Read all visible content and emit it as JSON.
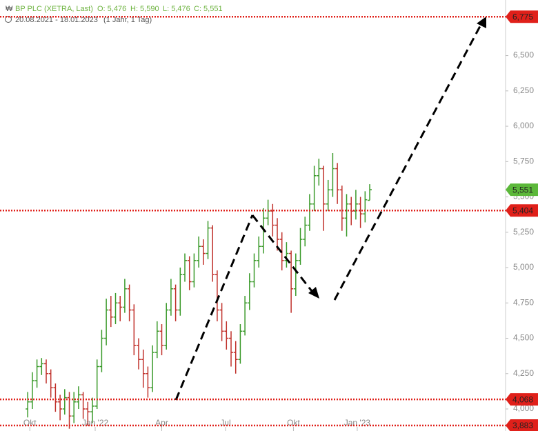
{
  "chart_data": {
    "type": "ohlc",
    "title": "BP PLC (XETRA, Last)",
    "quote": [
      "O: 5,476",
      "H: 5,590",
      "L: 5,476",
      "C: 5,551"
    ],
    "period": "20.08.2021 - 18.01.2023",
    "interval": "(1 Jahr, 1 Tag)",
    "up_color": "#3a9a2a",
    "down_color": "#c0302a",
    "open": [
      4.0,
      4.05,
      4.2,
      4.3,
      4.32,
      4.25,
      4.15,
      4.05,
      4.0,
      4.08,
      3.95,
      4.05,
      4.1,
      4.0,
      3.98,
      4.02,
      4.3,
      4.5,
      4.7,
      4.65,
      4.75,
      4.72,
      4.85,
      4.7,
      4.45,
      4.35,
      4.25,
      4.15,
      4.4,
      4.55,
      4.45,
      4.7,
      4.85,
      4.7,
      4.95,
      5.05,
      4.9,
      5.05,
      5.15,
      5.1,
      5.28,
      4.95,
      4.7,
      4.55,
      4.5,
      4.4,
      4.35,
      4.55,
      4.75,
      4.9,
      5.05,
      5.15,
      5.35,
      5.4,
      5.3,
      5.2,
      5.05,
      5.1,
      4.85,
      5.05,
      5.2,
      5.3,
      5.45,
      5.65,
      5.7,
      5.45,
      5.55,
      5.7,
      5.55,
      5.35,
      5.45,
      5.4,
      5.45,
      5.38,
      5.476
    ],
    "high": [
      4.12,
      4.26,
      4.35,
      4.36,
      4.35,
      4.28,
      4.18,
      4.1,
      4.14,
      4.12,
      4.12,
      4.16,
      4.12,
      4.05,
      4.08,
      4.35,
      4.56,
      4.78,
      4.8,
      4.82,
      4.8,
      4.92,
      4.88,
      4.74,
      4.5,
      4.42,
      4.3,
      4.45,
      4.62,
      4.6,
      4.75,
      4.92,
      4.88,
      5.0,
      5.1,
      5.08,
      5.1,
      5.22,
      5.2,
      5.33,
      5.3,
      4.98,
      4.75,
      4.62,
      4.55,
      4.48,
      4.6,
      4.8,
      4.96,
      5.1,
      5.22,
      5.42,
      5.48,
      5.45,
      5.35,
      5.25,
      5.18,
      5.12,
      5.1,
      5.28,
      5.36,
      5.52,
      5.72,
      5.77,
      5.72,
      5.62,
      5.81,
      5.74,
      5.58,
      5.52,
      5.5,
      5.55,
      5.5,
      5.54,
      5.59
    ],
    "low": [
      3.94,
      4.0,
      4.15,
      4.24,
      4.18,
      4.08,
      3.98,
      3.92,
      3.96,
      3.86,
      3.9,
      4.0,
      3.93,
      3.88,
      3.9,
      4.0,
      4.26,
      4.45,
      4.58,
      4.6,
      4.62,
      4.68,
      4.62,
      4.38,
      4.28,
      4.15,
      4.08,
      4.12,
      4.36,
      4.38,
      4.42,
      4.66,
      4.62,
      4.66,
      4.9,
      4.84,
      4.86,
      5.0,
      5.02,
      5.06,
      4.9,
      4.62,
      4.48,
      4.42,
      4.3,
      4.25,
      4.32,
      4.52,
      4.7,
      4.86,
      5.0,
      5.1,
      5.3,
      5.22,
      5.12,
      4.98,
      5.0,
      4.68,
      4.8,
      5.02,
      5.15,
      5.26,
      5.4,
      5.58,
      5.26,
      5.4,
      5.5,
      5.45,
      5.26,
      5.22,
      5.3,
      5.34,
      5.28,
      5.32,
      5.476
    ],
    "close": [
      4.05,
      4.2,
      4.3,
      4.32,
      4.25,
      4.15,
      4.05,
      4.0,
      4.08,
      3.95,
      4.05,
      4.1,
      4.0,
      3.98,
      4.02,
      4.3,
      4.5,
      4.7,
      4.65,
      4.75,
      4.72,
      4.85,
      4.7,
      4.45,
      4.35,
      4.25,
      4.15,
      4.4,
      4.55,
      4.45,
      4.7,
      4.85,
      4.7,
      4.95,
      5.05,
      4.9,
      5.05,
      5.15,
      5.1,
      5.28,
      4.95,
      4.7,
      4.55,
      4.5,
      4.4,
      4.35,
      4.55,
      4.75,
      4.9,
      5.05,
      5.15,
      5.35,
      5.4,
      5.3,
      5.2,
      5.05,
      5.1,
      4.85,
      5.05,
      5.2,
      5.3,
      5.45,
      5.65,
      5.7,
      5.45,
      5.55,
      5.7,
      5.55,
      5.35,
      5.45,
      5.4,
      5.45,
      5.38,
      5.48,
      5.551
    ],
    "xlim": [
      -6,
      103.4
    ],
    "xticks": [
      {
        "value": 0.45,
        "label": "Okt"
      },
      {
        "value": 14.6,
        "label": "Jan '22"
      },
      {
        "value": 29,
        "label": "Apr"
      },
      {
        "value": 42.8,
        "label": "Jul"
      },
      {
        "value": 57.5,
        "label": "Okt"
      },
      {
        "value": 71.3,
        "label": "Jan '23"
      }
    ],
    "ylim": [
      3.844,
      6.893
    ],
    "yticks": [
      {
        "value": 4.0,
        "label": "4,000"
      },
      {
        "value": 4.25,
        "label": "4,250"
      },
      {
        "value": 4.5,
        "label": "4,500"
      },
      {
        "value": 4.75,
        "label": "4,750"
      },
      {
        "value": 5.0,
        "label": "5,000"
      },
      {
        "value": 5.25,
        "label": "5,250"
      },
      {
        "value": 5.5,
        "label": "5,500"
      },
      {
        "value": 5.75,
        "label": "5,750"
      },
      {
        "value": 6.0,
        "label": "6,000"
      },
      {
        "value": 6.25,
        "label": "6,250"
      },
      {
        "value": 6.5,
        "label": "6,500"
      }
    ],
    "levels": [
      {
        "value": 6.775,
        "label": "6,775"
      },
      {
        "value": 5.404,
        "label": "5,404"
      },
      {
        "value": 4.068,
        "label": "4,068"
      },
      {
        "value": 3.883,
        "label": "3,883"
      }
    ],
    "level_color": "#e0201a",
    "last": {
      "value": 5.551,
      "label": "5,551"
    },
    "last_color": "#5cb83a"
  }
}
